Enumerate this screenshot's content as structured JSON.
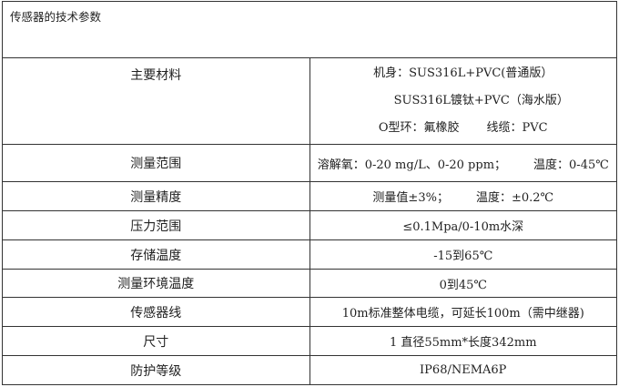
{
  "title": "传感器的技术参数",
  "rows": [
    {
      "label": "主要材料",
      "lines": [
        "机身：SUS316L+PVC(普通版）",
        "SUS316L镀钛+PVC（海水版）"
      ],
      "oring": "O型环：氟橡胶",
      "cable": "线缆：PVC"
    },
    {
      "label": "测量范围",
      "value": "溶解氧：0-20 mg/L、0-20 ppm；",
      "value2": "温度：0-45℃"
    },
    {
      "label": "测量精度",
      "value": "测量值±3%；",
      "value2": "温度：±0.2℃"
    },
    {
      "label": "压力范围",
      "value": "≤0.1Mpa/0-10m水深"
    },
    {
      "label": "存储温度",
      "value": "-15到65℃"
    },
    {
      "label": "测量环境温度",
      "value": "0到45℃"
    },
    {
      "label": "传感器线",
      "value": "10m标准整体电缆，可延长100m（需中继器)"
    },
    {
      "label": "尺寸",
      "value": "1 直径55mm*长度342mm"
    },
    {
      "label": "防护等级",
      "value": "IP68/NEMA6P"
    }
  ]
}
